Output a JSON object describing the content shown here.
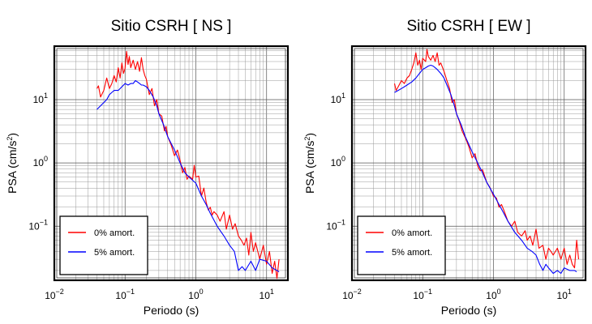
{
  "chart_data": [
    {
      "type": "line",
      "title": "Sitio CSRH [ NS ]",
      "xlabel": "Periodo (s)",
      "ylabel_base": "PSA (cm/s",
      "ylabel_sup": "2",
      "ylabel_close": ")",
      "xscale": "log",
      "yscale": "log",
      "xlim": [
        0.01,
        20
      ],
      "ylim": [
        0.014,
        70
      ],
      "grid": true,
      "legend_position": "bottom-left",
      "x_ticks": [
        {
          "base": "10",
          "exp": "−2",
          "value": 0.01
        },
        {
          "base": "10",
          "exp": "−1",
          "value": 0.1
        },
        {
          "base": "10",
          "exp": "0",
          "value": 1
        },
        {
          "base": "10",
          "exp": "1",
          "value": 10
        }
      ],
      "y_ticks": [
        {
          "base": "10",
          "exp": "−1",
          "value": 0.1
        },
        {
          "base": "10",
          "exp": "0",
          "value": 1
        },
        {
          "base": "10",
          "exp": "1",
          "value": 10
        }
      ],
      "series": [
        {
          "name": "0% amort.",
          "color": "#ff0000",
          "points": [
            [
              0.04,
              15
            ],
            [
              0.042,
              16.5
            ],
            [
              0.045,
              11
            ],
            [
              0.05,
              14
            ],
            [
              0.055,
              22
            ],
            [
              0.06,
              15
            ],
            [
              0.065,
              18
            ],
            [
              0.07,
              24
            ],
            [
              0.075,
              19
            ],
            [
              0.08,
              32
            ],
            [
              0.085,
              22
            ],
            [
              0.09,
              38
            ],
            [
              0.095,
              26
            ],
            [
              0.1,
              31
            ],
            [
              0.105,
              58
            ],
            [
              0.11,
              36
            ],
            [
              0.115,
              48
            ],
            [
              0.12,
              32
            ],
            [
              0.13,
              42
            ],
            [
              0.14,
              30
            ],
            [
              0.15,
              40
            ],
            [
              0.16,
              28
            ],
            [
              0.17,
              46
            ],
            [
              0.18,
              30
            ],
            [
              0.19,
              24
            ],
            [
              0.2,
              21
            ],
            [
              0.22,
              12
            ],
            [
              0.24,
              15
            ],
            [
              0.26,
              8
            ],
            [
              0.28,
              10
            ],
            [
              0.3,
              6
            ],
            [
              0.33,
              5.5
            ],
            [
              0.36,
              3.2
            ],
            [
              0.38,
              3.8
            ],
            [
              0.4,
              2.6
            ],
            [
              0.45,
              1.9
            ],
            [
              0.5,
              1.3
            ],
            [
              0.55,
              1.6
            ],
            [
              0.6,
              1.1
            ],
            [
              0.65,
              0.7
            ],
            [
              0.7,
              0.85
            ],
            [
              0.75,
              0.55
            ],
            [
              0.8,
              0.62
            ],
            [
              0.9,
              0.55
            ],
            [
              0.95,
              0.92
            ],
            [
              1.0,
              0.6
            ],
            [
              1.1,
              0.62
            ],
            [
              1.2,
              0.3
            ],
            [
              1.3,
              0.4
            ],
            [
              1.4,
              0.24
            ],
            [
              1.5,
              0.18
            ],
            [
              1.6,
              0.2
            ],
            [
              1.7,
              0.15
            ],
            [
              1.8,
              0.17
            ],
            [
              2.0,
              0.15
            ],
            [
              2.2,
              0.12
            ],
            [
              2.5,
              0.17
            ],
            [
              2.7,
              0.09
            ],
            [
              3.0,
              0.15
            ],
            [
              3.3,
              0.09
            ],
            [
              3.6,
              0.11
            ],
            [
              4.0,
              0.07
            ],
            [
              4.4,
              0.06
            ],
            [
              4.8,
              0.05
            ],
            [
              5.2,
              0.065
            ],
            [
              5.6,
              0.035
            ],
            [
              6.0,
              0.08
            ],
            [
              6.5,
              0.04
            ],
            [
              7.0,
              0.055
            ],
            [
              8.0,
              0.03
            ],
            [
              9.0,
              0.05
            ],
            [
              10.0,
              0.025
            ],
            [
              11.0,
              0.04
            ],
            [
              12.0,
              0.018
            ],
            [
              13.0,
              0.028
            ],
            [
              14.0,
              0.015
            ],
            [
              15.0,
              0.03
            ]
          ]
        },
        {
          "name": "5% amort.",
          "color": "#0000ff",
          "points": [
            [
              0.04,
              7
            ],
            [
              0.045,
              8
            ],
            [
              0.05,
              9
            ],
            [
              0.055,
              10
            ],
            [
              0.06,
              12
            ],
            [
              0.065,
              13
            ],
            [
              0.07,
              14
            ],
            [
              0.08,
              14
            ],
            [
              0.09,
              16
            ],
            [
              0.1,
              18
            ],
            [
              0.11,
              17
            ],
            [
              0.12,
              18
            ],
            [
              0.13,
              18
            ],
            [
              0.14,
              20
            ],
            [
              0.15,
              19
            ],
            [
              0.16,
              18
            ],
            [
              0.17,
              17
            ],
            [
              0.18,
              17
            ],
            [
              0.2,
              16
            ],
            [
              0.22,
              14
            ],
            [
              0.25,
              11
            ],
            [
              0.28,
              8
            ],
            [
              0.3,
              6
            ],
            [
              0.35,
              4
            ],
            [
              0.4,
              2.6
            ],
            [
              0.5,
              1.6
            ],
            [
              0.6,
              1.0
            ],
            [
              0.7,
              0.7
            ],
            [
              0.8,
              0.6
            ],
            [
              1.0,
              0.48
            ],
            [
              1.2,
              0.3
            ],
            [
              1.4,
              0.22
            ],
            [
              1.6,
              0.16
            ],
            [
              2.0,
              0.1
            ],
            [
              2.5,
              0.07
            ],
            [
              3.0,
              0.05
            ],
            [
              3.5,
              0.04
            ],
            [
              4.0,
              0.02
            ],
            [
              4.5,
              0.023
            ],
            [
              5.0,
              0.02
            ],
            [
              6.0,
              0.028
            ],
            [
              7.0,
              0.02
            ],
            [
              8.0,
              0.03
            ],
            [
              10.0,
              0.028
            ],
            [
              12.0,
              0.022
            ],
            [
              14.0,
              0.02
            ],
            [
              15.0,
              0.019
            ]
          ]
        }
      ]
    },
    {
      "type": "line",
      "title": "Sitio CSRH [ EW ]",
      "xlabel": "Periodo (s)",
      "ylabel_base": "PSA (cm/s",
      "ylabel_sup": "2",
      "ylabel_close": ")",
      "xscale": "log",
      "yscale": "log",
      "xlim": [
        0.01,
        20
      ],
      "ylim": [
        0.014,
        70
      ],
      "grid": true,
      "legend_position": "bottom-left",
      "x_ticks": [
        {
          "base": "10",
          "exp": "−2",
          "value": 0.01
        },
        {
          "base": "10",
          "exp": "−1",
          "value": 0.1
        },
        {
          "base": "10",
          "exp": "0",
          "value": 1
        },
        {
          "base": "10",
          "exp": "1",
          "value": 10
        }
      ],
      "y_ticks": [
        {
          "base": "10",
          "exp": "−1",
          "value": 0.1
        },
        {
          "base": "10",
          "exp": "0",
          "value": 1
        },
        {
          "base": "10",
          "exp": "1",
          "value": 10
        }
      ],
      "series": [
        {
          "name": "0% amort.",
          "color": "#ff0000",
          "points": [
            [
              0.04,
              18
            ],
            [
              0.042,
              14
            ],
            [
              0.045,
              16
            ],
            [
              0.05,
              20
            ],
            [
              0.055,
              18
            ],
            [
              0.06,
              22
            ],
            [
              0.065,
              24
            ],
            [
              0.07,
              30
            ],
            [
              0.075,
              38
            ],
            [
              0.08,
              55
            ],
            [
              0.085,
              35
            ],
            [
              0.09,
              42
            ],
            [
              0.095,
              30
            ],
            [
              0.1,
              45
            ],
            [
              0.11,
              40
            ],
            [
              0.115,
              62
            ],
            [
              0.12,
              48
            ],
            [
              0.13,
              42
            ],
            [
              0.14,
              50
            ],
            [
              0.15,
              40
            ],
            [
              0.16,
              55
            ],
            [
              0.17,
              35
            ],
            [
              0.18,
              38
            ],
            [
              0.2,
              28
            ],
            [
              0.22,
              20
            ],
            [
              0.24,
              15
            ],
            [
              0.26,
              9
            ],
            [
              0.28,
              10
            ],
            [
              0.3,
              6
            ],
            [
              0.33,
              4.5
            ],
            [
              0.36,
              3.2
            ],
            [
              0.4,
              2.5
            ],
            [
              0.45,
              1.8
            ],
            [
              0.5,
              1.2
            ],
            [
              0.55,
              1.4
            ],
            [
              0.6,
              0.9
            ],
            [
              0.65,
              0.75
            ],
            [
              0.7,
              0.78
            ],
            [
              0.8,
              0.5
            ],
            [
              0.9,
              0.4
            ],
            [
              1.0,
              0.3
            ],
            [
              1.1,
              0.28
            ],
            [
              1.2,
              0.2
            ],
            [
              1.3,
              0.22
            ],
            [
              1.4,
              0.18
            ],
            [
              1.6,
              0.12
            ],
            [
              1.8,
              0.1
            ],
            [
              2.0,
              0.12
            ],
            [
              2.2,
              0.08
            ],
            [
              2.5,
              0.07
            ],
            [
              2.8,
              0.085
            ],
            [
              3.0,
              0.06
            ],
            [
              3.3,
              0.07
            ],
            [
              3.6,
              0.05
            ],
            [
              4.0,
              0.09
            ],
            [
              4.4,
              0.045
            ],
            [
              5.0,
              0.05
            ],
            [
              5.5,
              0.03
            ],
            [
              6.0,
              0.045
            ],
            [
              6.5,
              0.04
            ],
            [
              7.0,
              0.035
            ],
            [
              8.0,
              0.045
            ],
            [
              9.0,
              0.03
            ],
            [
              10.0,
              0.045
            ],
            [
              11.0,
              0.025
            ],
            [
              12.0,
              0.035
            ],
            [
              13.0,
              0.025
            ],
            [
              14.0,
              0.022
            ],
            [
              15.0,
              0.06
            ],
            [
              16.0,
              0.03
            ]
          ]
        },
        {
          "name": "5% amort.",
          "color": "#0000ff",
          "points": [
            [
              0.04,
              13
            ],
            [
              0.045,
              14
            ],
            [
              0.05,
              15
            ],
            [
              0.055,
              16
            ],
            [
              0.06,
              17
            ],
            [
              0.07,
              19
            ],
            [
              0.08,
              22
            ],
            [
              0.09,
              26
            ],
            [
              0.1,
              30
            ],
            [
              0.11,
              32
            ],
            [
              0.12,
              34
            ],
            [
              0.13,
              35
            ],
            [
              0.14,
              34
            ],
            [
              0.15,
              32
            ],
            [
              0.16,
              30
            ],
            [
              0.18,
              26
            ],
            [
              0.2,
              22
            ],
            [
              0.22,
              17
            ],
            [
              0.25,
              12
            ],
            [
              0.28,
              8
            ],
            [
              0.3,
              6
            ],
            [
              0.35,
              4
            ],
            [
              0.4,
              2.6
            ],
            [
              0.5,
              1.5
            ],
            [
              0.6,
              1.0
            ],
            [
              0.7,
              0.7
            ],
            [
              0.8,
              0.5
            ],
            [
              1.0,
              0.32
            ],
            [
              1.2,
              0.22
            ],
            [
              1.4,
              0.16
            ],
            [
              1.6,
              0.12
            ],
            [
              2.0,
              0.08
            ],
            [
              2.5,
              0.06
            ],
            [
              3.0,
              0.045
            ],
            [
              3.5,
              0.04
            ],
            [
              4.0,
              0.035
            ],
            [
              4.5,
              0.025
            ],
            [
              5.0,
              0.02
            ],
            [
              5.5,
              0.025
            ],
            [
              6.0,
              0.022
            ],
            [
              7.0,
              0.018
            ],
            [
              8.0,
              0.02
            ],
            [
              9.0,
              0.018
            ],
            [
              10.0,
              0.022
            ],
            [
              12.0,
              0.02
            ],
            [
              14.0,
              0.02
            ],
            [
              15.0,
              0.019
            ]
          ]
        }
      ]
    }
  ]
}
